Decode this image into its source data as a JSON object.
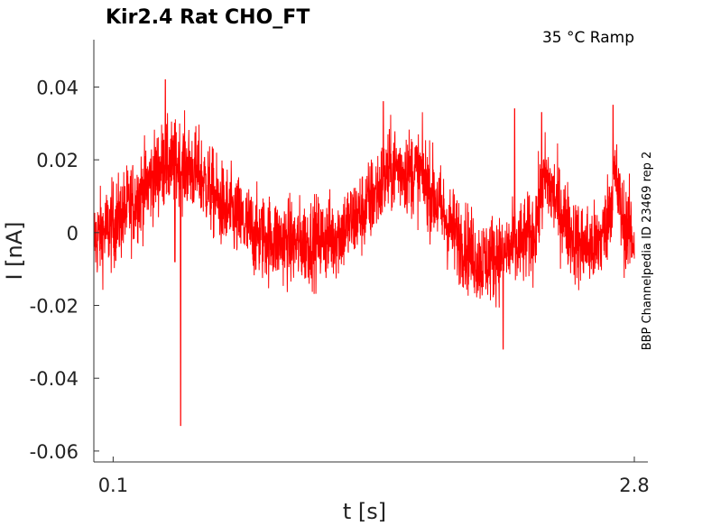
{
  "chart_data": {
    "type": "line",
    "title": "Kir2.4  Rat  CHO_FT",
    "condition": "35 °C  Ramp",
    "side_label": "BBP Channelpedia ID 23469 rep 2",
    "xlabel": "t [s]",
    "ylabel": "I [nA]",
    "xlim": [
      0.0,
      2.8
    ],
    "ylim": [
      -0.063,
      0.053
    ],
    "x_ticks": [
      0.1,
      2.8
    ],
    "x_tick_labels": [
      "0.1",
      "2.8"
    ],
    "y_ticks": [
      0.04,
      0.02,
      0,
      -0.02,
      -0.04,
      -0.06
    ],
    "y_tick_labels": [
      "0.04",
      "0.02",
      "0",
      "-0.02",
      "-0.04",
      "-0.06"
    ],
    "grid": false,
    "series": [
      {
        "color": "#ff0000",
        "noise_amplitude": 0.006,
        "envelope": {
          "t": [
            0.0,
            0.1,
            0.2,
            0.35,
            0.45,
            0.55,
            0.65,
            0.85,
            1.05,
            1.25,
            1.4,
            1.55,
            1.7,
            1.85,
            2.0,
            2.1,
            2.2,
            2.28,
            2.34,
            2.4,
            2.5,
            2.6,
            2.65,
            2.7,
            2.74,
            2.8
          ],
          "mean": [
            -0.002,
            0.002,
            0.008,
            0.018,
            0.019,
            0.016,
            0.008,
            -0.001,
            -0.003,
            -0.001,
            0.006,
            0.018,
            0.016,
            0.001,
            -0.008,
            -0.006,
            -0.004,
            0.0,
            0.015,
            0.008,
            -0.003,
            -0.004,
            0.001,
            0.016,
            0.003,
            -0.002
          ]
        },
        "spikes": [
          {
            "t": 0.37,
            "y": 0.042
          },
          {
            "t": 0.45,
            "y": -0.053
          },
          {
            "t": 0.42,
            "y": -0.008
          },
          {
            "t": 1.5,
            "y": 0.036
          },
          {
            "t": 2.12,
            "y": -0.032
          },
          {
            "t": 2.18,
            "y": 0.034
          },
          {
            "t": 2.32,
            "y": 0.033
          },
          {
            "t": 2.69,
            "y": 0.035
          }
        ]
      }
    ]
  }
}
